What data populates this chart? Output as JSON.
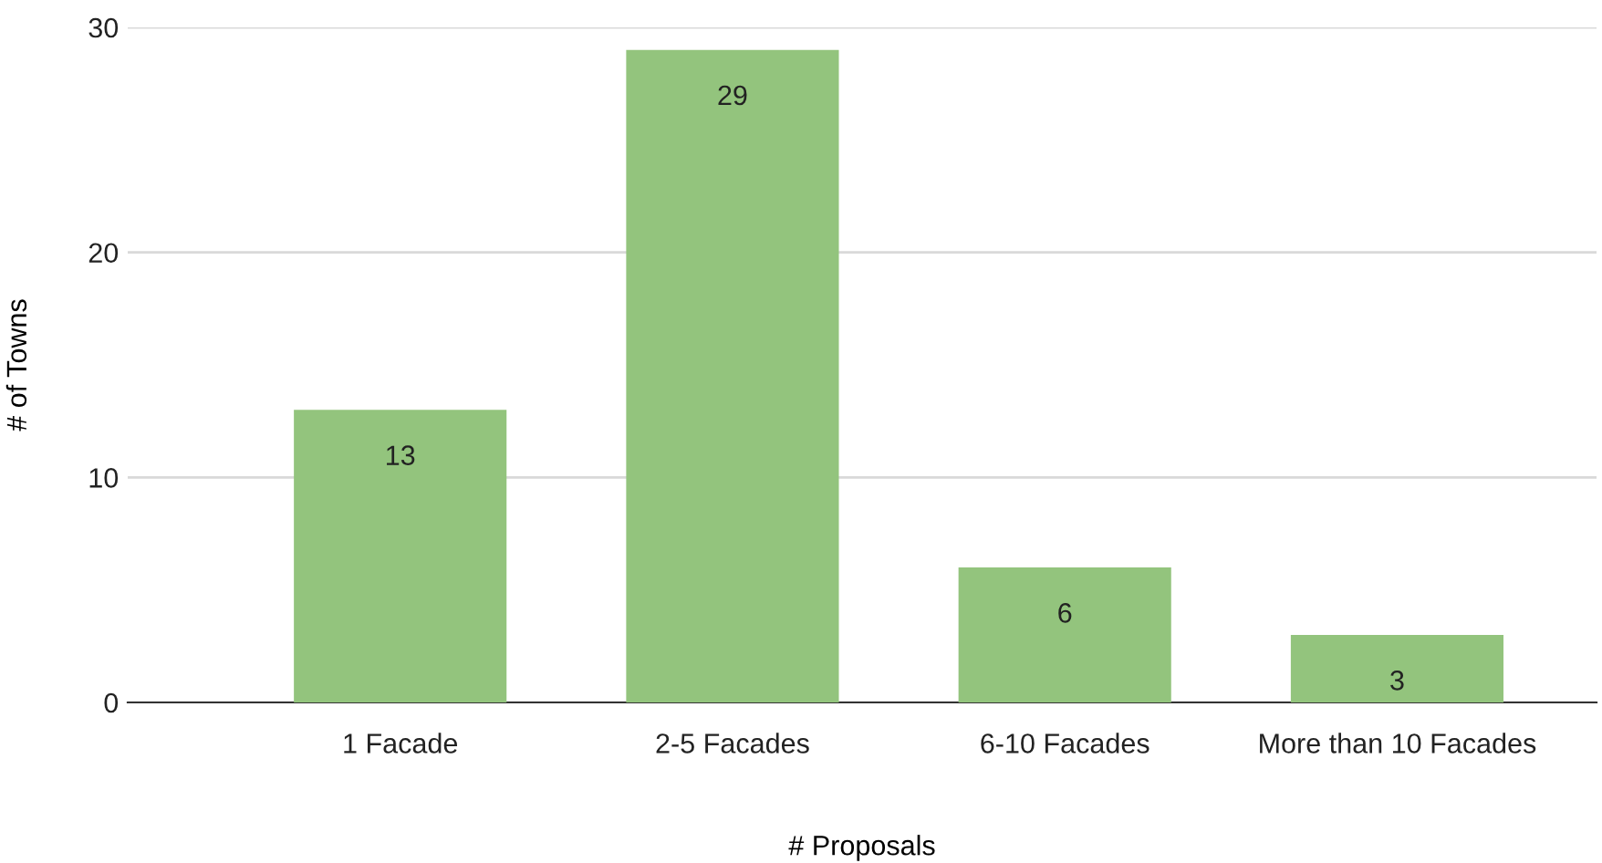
{
  "chart_data": {
    "type": "bar",
    "xlabel": "# Proposals",
    "ylabel": "# of Towns",
    "categories": [
      "1 Facade",
      "2-5 Facades",
      "6-10 Facades",
      "More than 10 Facades"
    ],
    "values": [
      13,
      29,
      6,
      3
    ],
    "color": "#93c47d",
    "ylim": [
      0,
      30
    ],
    "yticks": [
      0,
      10,
      20,
      30
    ],
    "grid": "y",
    "data_labels": true,
    "legend": false
  }
}
